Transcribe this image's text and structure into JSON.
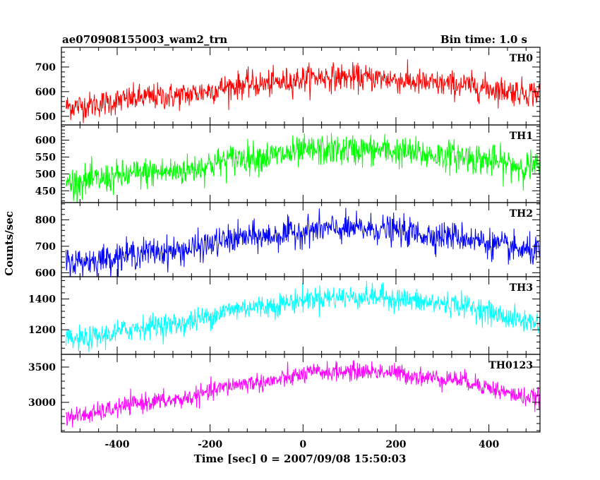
{
  "header": {
    "title": "ae070908155003_wam2_trn",
    "bin_time": "Bin time: 1.0 s"
  },
  "chart_data": {
    "type": "line",
    "xlabel": "Time [sec] 0 = 2007/09/08 15:50:03",
    "ylabel": "Counts/sec",
    "xlim": [
      -520,
      510
    ],
    "x_range": [
      -510,
      510
    ],
    "x_ticks": [
      "-400",
      "-200",
      "0",
      "200",
      "400"
    ],
    "x_tick_values": [
      -400,
      -200,
      0,
      200,
      400
    ],
    "grid": false,
    "panels": [
      {
        "name": "TH0",
        "color": "#ff0000",
        "ylim": [
          465,
          780
        ],
        "y_ticks": [
          "500",
          "600",
          "700"
        ],
        "y_tick_values": [
          500,
          600,
          700
        ],
        "trend_knots": {
          "x": [
            -510,
            -300,
            -100,
            50,
            150,
            300,
            510
          ],
          "y": [
            540,
            580,
            630,
            660,
            655,
            630,
            595
          ]
        },
        "noise_sigma": 27
      },
      {
        "name": "TH1",
        "color": "#00ff00",
        "ylim": [
          415,
          645
        ],
        "y_ticks": [
          "450",
          "500",
          "550",
          "600"
        ],
        "y_tick_values": [
          450,
          500,
          550,
          600
        ],
        "trend_knots": {
          "x": [
            -510,
            -300,
            -100,
            50,
            150,
            300,
            510
          ],
          "y": [
            475,
            505,
            550,
            570,
            570,
            555,
            520
          ]
        },
        "noise_sigma": 23
      },
      {
        "name": "TH2",
        "color": "#0000ff",
        "ylim": [
          585,
          865
        ],
        "y_ticks": [
          "600",
          "700",
          "800"
        ],
        "y_tick_values": [
          600,
          700,
          800
        ],
        "trend_knots": {
          "x": [
            -510,
            -300,
            -100,
            50,
            150,
            300,
            510
          ],
          "y": [
            640,
            680,
            735,
            765,
            765,
            740,
            680
          ]
        },
        "noise_sigma": 27
      },
      {
        "name": "TH3",
        "color": "#00ffff",
        "ylim": [
          1040,
          1545
        ],
        "y_ticks": [
          "1200",
          "1400"
        ],
        "y_tick_values": [
          1200,
          1400
        ],
        "trend_knots": {
          "x": [
            -510,
            -300,
            -100,
            50,
            150,
            300,
            510
          ],
          "y": [
            1130,
            1230,
            1350,
            1410,
            1415,
            1370,
            1250
          ]
        },
        "noise_sigma": 38
      },
      {
        "name": "TH0123",
        "color": "#ff00ff",
        "ylim": [
          2580,
          3680
        ],
        "y_ticks": [
          "3000",
          "3500"
        ],
        "y_tick_values": [
          3000,
          3500
        ],
        "trend_knots": {
          "x": [
            -510,
            -300,
            -100,
            50,
            150,
            300,
            510
          ],
          "y": [
            2800,
            3020,
            3280,
            3430,
            3440,
            3340,
            3060
          ]
        },
        "noise_sigma": 65
      }
    ]
  }
}
